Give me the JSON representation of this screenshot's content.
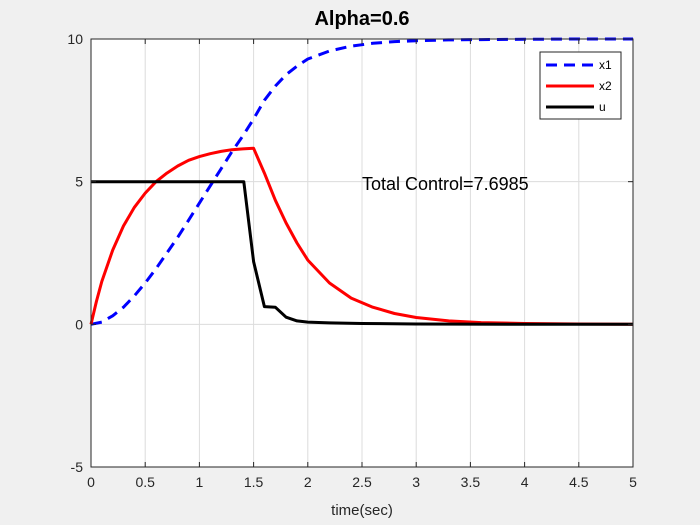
{
  "chart_data": {
    "type": "line",
    "title": "Alpha=0.6",
    "xlabel": "time(sec)",
    "ylabel": "",
    "xlim": [
      0,
      5
    ],
    "ylim": [
      -5,
      10
    ],
    "x_ticks": [
      0,
      0.5,
      1,
      1.5,
      2,
      2.5,
      3,
      3.5,
      4,
      4.5,
      5
    ],
    "x_tick_labels": [
      "0",
      "0.5",
      "1",
      "1.5",
      "2",
      "2.5",
      "3",
      "3.5",
      "4",
      "4.5",
      "5"
    ],
    "y_ticks": [
      -5,
      0,
      5,
      10
    ],
    "y_tick_labels": [
      "-5",
      "0",
      "5",
      "10"
    ],
    "grid": true,
    "legend_position": "top-right",
    "annotation": "Total Control=7.6985",
    "series": [
      {
        "name": "x1",
        "color": "#0000ff",
        "style": "dashed",
        "x": [
          0,
          0.1,
          0.2,
          0.3,
          0.4,
          0.5,
          0.6,
          0.7,
          0.8,
          0.9,
          1.0,
          1.1,
          1.2,
          1.3,
          1.4,
          1.5,
          1.6,
          1.7,
          1.8,
          1.9,
          2.0,
          2.2,
          2.4,
          2.6,
          2.8,
          3.0,
          3.3,
          3.6,
          4.0,
          4.5,
          5.0
        ],
        "y": [
          0,
          0.08,
          0.3,
          0.6,
          1.0,
          1.45,
          1.95,
          2.5,
          3.05,
          3.65,
          4.25,
          4.85,
          5.45,
          6.05,
          6.6,
          7.2,
          7.85,
          8.35,
          8.75,
          9.05,
          9.3,
          9.58,
          9.75,
          9.85,
          9.91,
          9.94,
          9.97,
          9.98,
          9.99,
          10.0,
          10.0
        ]
      },
      {
        "name": "x2",
        "color": "#ff0000",
        "style": "solid",
        "x": [
          0,
          0.05,
          0.1,
          0.2,
          0.3,
          0.4,
          0.5,
          0.6,
          0.7,
          0.8,
          0.9,
          1.0,
          1.1,
          1.2,
          1.3,
          1.4,
          1.5,
          1.6,
          1.7,
          1.8,
          1.9,
          2.0,
          2.2,
          2.4,
          2.6,
          2.8,
          3.0,
          3.3,
          3.6,
          4.0,
          4.5,
          5.0
        ],
        "y": [
          0,
          0.8,
          1.5,
          2.6,
          3.45,
          4.1,
          4.6,
          5.0,
          5.3,
          5.55,
          5.75,
          5.88,
          5.98,
          6.06,
          6.12,
          6.15,
          6.17,
          5.3,
          4.35,
          3.55,
          2.85,
          2.25,
          1.45,
          0.92,
          0.6,
          0.38,
          0.24,
          0.12,
          0.06,
          0.03,
          0.01,
          0.0
        ]
      },
      {
        "name": "u",
        "color": "#000000",
        "style": "solid",
        "x": [
          0,
          0.5,
          1.0,
          1.3,
          1.41,
          1.5,
          1.6,
          1.7,
          1.8,
          1.9,
          2.0,
          2.2,
          2.5,
          3.0,
          4.0,
          5.0
        ],
        "y": [
          5,
          5,
          5,
          5,
          5,
          2.2,
          0.62,
          0.6,
          0.25,
          0.12,
          0.08,
          0.05,
          0.03,
          0.01,
          0.0,
          0.0
        ]
      }
    ]
  }
}
